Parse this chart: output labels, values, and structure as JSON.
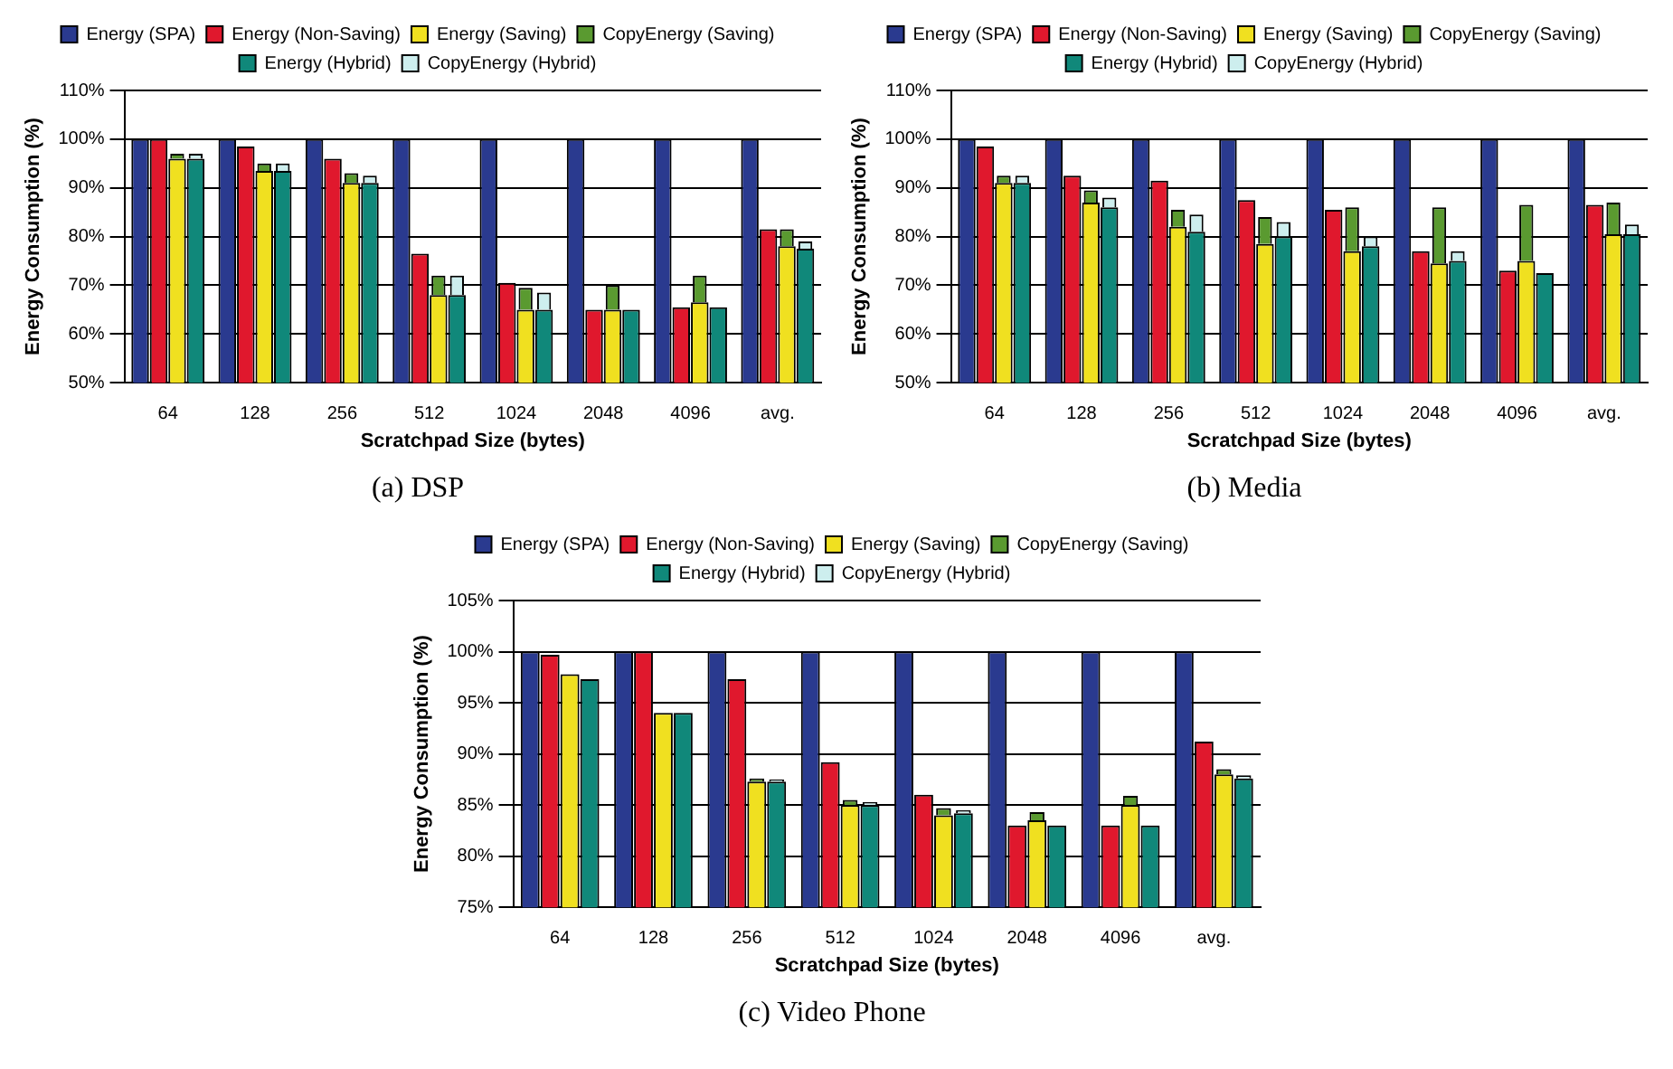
{
  "chart_data": [
    {
      "type": "bar",
      "title": "(a) DSP",
      "xlabel": "Scratchpad Size (bytes)",
      "ylabel": "Energy Consumption (%)",
      "categories": [
        "64",
        "128",
        "256",
        "512",
        "1024",
        "2048",
        "4096",
        "avg."
      ],
      "legend": "top",
      "grid": "y",
      "ylim": [
        50,
        110
      ],
      "yticks": [
        {
          "value": 50,
          "label": "50%"
        },
        {
          "value": 60,
          "label": "60%"
        },
        {
          "value": 70,
          "label": "70%"
        },
        {
          "value": 80,
          "label": "80%"
        },
        {
          "value": 90,
          "label": "90%"
        },
        {
          "value": 100,
          "label": "100%"
        },
        {
          "value": 110,
          "label": "110%"
        }
      ],
      "series": [
        {
          "name": "Energy (SPA)",
          "color": "#2a3a8f",
          "values": [
            100,
            100,
            100,
            100,
            100,
            100,
            100,
            100
          ]
        },
        {
          "name": "Energy (Non-Saving)",
          "color": "#e0182d",
          "values": [
            100,
            98.5,
            96,
            76.5,
            70.5,
            65,
            65.5,
            81.5
          ]
        },
        {
          "name": "Energy (Saving)",
          "color": "#f0e020",
          "values": [
            96,
            93.5,
            91,
            68,
            65,
            65,
            66.5,
            78
          ]
        },
        {
          "name": "CopyEnergy (Saving)",
          "color": "#5a9a30",
          "base": [
            96,
            93.5,
            91,
            68,
            65,
            65,
            66.5,
            78
          ],
          "values": [
            1,
            1.5,
            2,
            4,
            4.5,
            5,
            5.5,
            3.5
          ]
        },
        {
          "name": "Energy (Hybrid)",
          "color": "#10887a",
          "values": [
            96,
            93.5,
            91,
            68,
            65,
            65,
            65.5,
            77.5
          ]
        },
        {
          "name": "CopyEnergy (Hybrid)",
          "color": "#cdeeee",
          "base": [
            96,
            93.5,
            91,
            68,
            65,
            null,
            null,
            77.5
          ],
          "values": [
            1,
            1.5,
            1.5,
            4,
            3.5,
            null,
            null,
            1.5
          ]
        }
      ]
    },
    {
      "type": "bar",
      "title": "(b) Media",
      "xlabel": "Scratchpad Size (bytes)",
      "ylabel": "Energy Consumption (%)",
      "categories": [
        "64",
        "128",
        "256",
        "512",
        "1024",
        "2048",
        "4096",
        "avg."
      ],
      "legend": "top",
      "grid": "y",
      "ylim": [
        50,
        110
      ],
      "yticks": [
        {
          "value": 50,
          "label": "50%"
        },
        {
          "value": 60,
          "label": "60%"
        },
        {
          "value": 70,
          "label": "70%"
        },
        {
          "value": 80,
          "label": "80%"
        },
        {
          "value": 90,
          "label": "90%"
        },
        {
          "value": 100,
          "label": "100%"
        },
        {
          "value": 110,
          "label": "110%"
        }
      ],
      "series": [
        {
          "name": "Energy (SPA)",
          "color": "#2a3a8f",
          "values": [
            100,
            100,
            100,
            100,
            100,
            100,
            100,
            100
          ]
        },
        {
          "name": "Energy (Non-Saving)",
          "color": "#e0182d",
          "values": [
            98.5,
            92.5,
            91.5,
            87.5,
            85.5,
            77,
            73,
            86.5
          ]
        },
        {
          "name": "Energy (Saving)",
          "color": "#f0e020",
          "values": [
            91,
            87,
            82,
            78.5,
            77,
            74.5,
            75,
            80.5
          ]
        },
        {
          "name": "CopyEnergy (Saving)",
          "color": "#5a9a30",
          "base": [
            91,
            87,
            82,
            78.5,
            77,
            74.5,
            75,
            80.5
          ],
          "values": [
            1.5,
            2.5,
            3.5,
            5.5,
            9,
            11.5,
            11.5,
            6.5
          ]
        },
        {
          "name": "Energy (Hybrid)",
          "color": "#10887a",
          "values": [
            91,
            86,
            81,
            80,
            78,
            75,
            72.5,
            80.5
          ]
        },
        {
          "name": "CopyEnergy (Hybrid)",
          "color": "#cdeeee",
          "base": [
            91,
            86,
            81,
            80,
            78,
            75,
            null,
            80.5
          ],
          "values": [
            1.5,
            2,
            3.5,
            3,
            2,
            2,
            null,
            2
          ]
        }
      ]
    },
    {
      "type": "bar",
      "title": "(c) Video Phone",
      "xlabel": "Scratchpad Size (bytes)",
      "ylabel": "Energy Consumption (%)",
      "categories": [
        "64",
        "128",
        "256",
        "512",
        "1024",
        "2048",
        "4096",
        "avg."
      ],
      "legend": "top",
      "grid": "y",
      "ylim": [
        75,
        105
      ],
      "yticks": [
        {
          "value": 75,
          "label": "75%"
        },
        {
          "value": 80,
          "label": "80%"
        },
        {
          "value": 85,
          "label": "85%"
        },
        {
          "value": 90,
          "label": "90%"
        },
        {
          "value": 95,
          "label": "95%"
        },
        {
          "value": 100,
          "label": "100%"
        },
        {
          "value": 105,
          "label": "105%"
        }
      ],
      "series": [
        {
          "name": "Energy (SPA)",
          "color": "#2a3a8f",
          "values": [
            100,
            100,
            100,
            100,
            100,
            100,
            100,
            100
          ]
        },
        {
          "name": "Energy (Non-Saving)",
          "color": "#e0182d",
          "values": [
            99.7,
            100,
            97.3,
            89.2,
            86,
            83,
            83,
            91.2
          ]
        },
        {
          "name": "Energy (Saving)",
          "color": "#f0e020",
          "values": [
            97.8,
            94,
            87.3,
            85,
            84,
            83.5,
            85,
            88
          ]
        },
        {
          "name": "CopyEnergy (Saving)",
          "color": "#5a9a30",
          "base": [
            null,
            null,
            87.3,
            85,
            84,
            83.5,
            85,
            88
          ],
          "values": [
            null,
            null,
            0.3,
            0.5,
            0.7,
            0.8,
            0.9,
            0.5
          ]
        },
        {
          "name": "Energy (Hybrid)",
          "color": "#10887a",
          "values": [
            97.3,
            94,
            87.3,
            85,
            84.2,
            83,
            83,
            87.6
          ]
        },
        {
          "name": "CopyEnergy (Hybrid)",
          "color": "#cdeeee",
          "base": [
            null,
            null,
            87.3,
            85,
            84.2,
            null,
            null,
            87.6
          ],
          "values": [
            null,
            null,
            0.2,
            0.3,
            0.3,
            null,
            null,
            0.3
          ]
        }
      ]
    }
  ]
}
